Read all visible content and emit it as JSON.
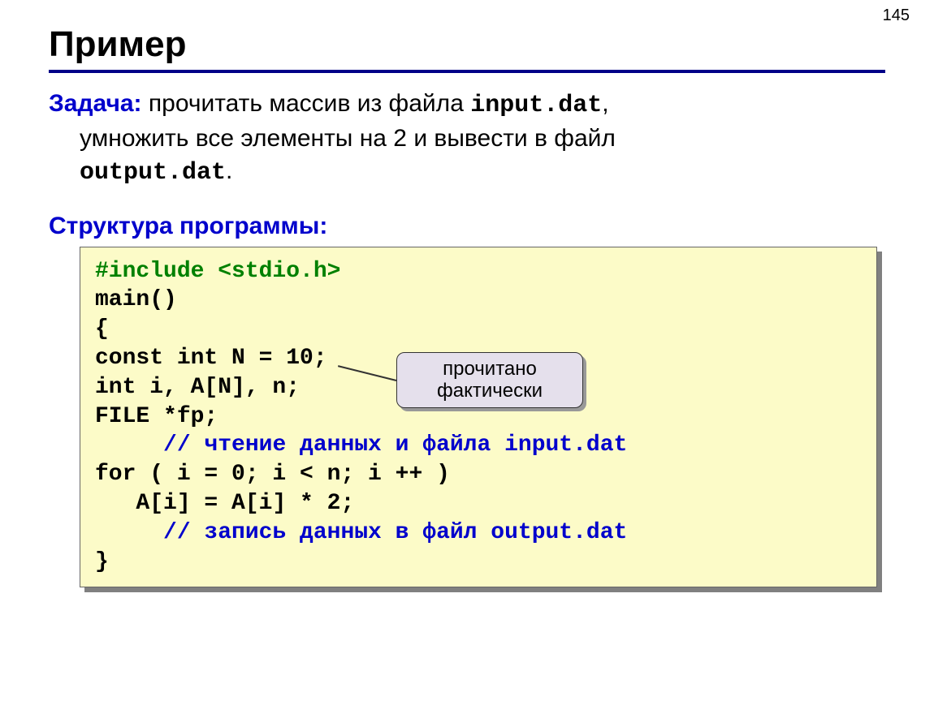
{
  "page_number": "145",
  "title": "Пример",
  "colors": {
    "rule": "#000088",
    "task_label": "#0000cc",
    "structure_label": "#0000cc",
    "code_bg": "#fcfbc8",
    "code_border": "#666666",
    "code_shadow": "#808080",
    "code_green": "#008000",
    "code_blue": "#0000cc",
    "callout_bg": "#e5e0ec",
    "callout_border": "#333333",
    "callout_shadow": "#999999"
  },
  "task": {
    "label": "Задача:",
    "line1_before": " прочитать массив из файла ",
    "line1_mono": "input.dat",
    "line1_after": ",",
    "line2": "умножить все элементы на 2 и вывести в файл",
    "line3_mono": "output.dat",
    "line3_after": "."
  },
  "structure_label": "Структура программы:",
  "code": {
    "l1": "#include <stdio.h>",
    "l2": "main()",
    "l3": "{",
    "l4": "const int N = 10;",
    "l5": "int i, A[N], n;",
    "l6": "FILE *fp;",
    "l7_indent": "     ",
    "l7": "// чтение данных и файла input.dat",
    "l8": "for ( i = 0; i < n; i ++ )",
    "l9_indent": "   ",
    "l9": "A[i] = A[i] * 2;",
    "l10_indent": "     ",
    "l10": "// запись данных в файл output.dat",
    "l11": "}"
  },
  "callout": {
    "line1": "прочитано",
    "line2": "фактически"
  }
}
